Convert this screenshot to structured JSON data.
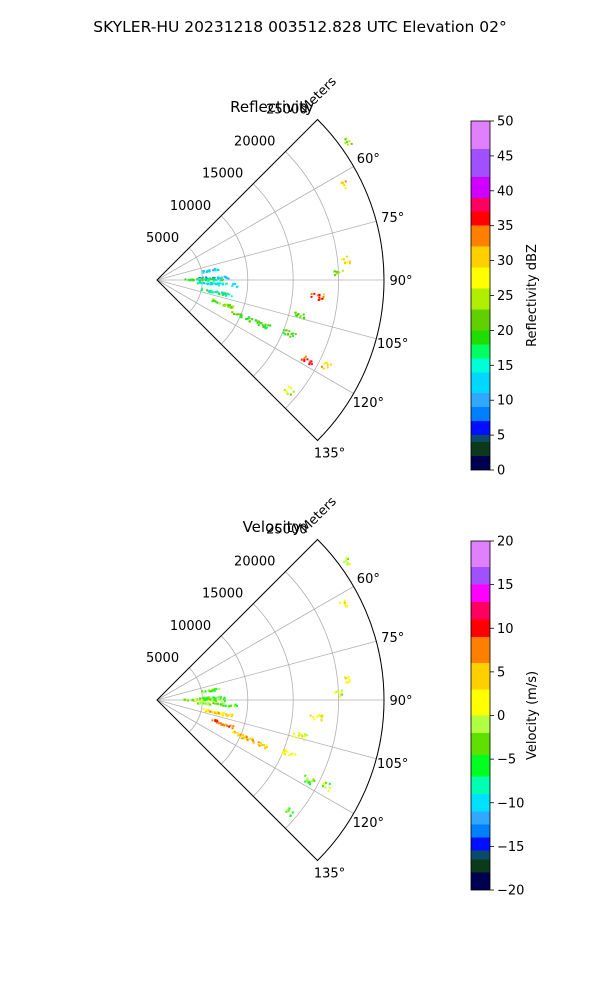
{
  "figure": {
    "title": "SKYLER-HU  20231218  003512.828 UTC Elevation 02°"
  },
  "chart_data": [
    {
      "type": "polar-sector",
      "title": "Reflectivity",
      "radial_label": "Meters",
      "r_ticks": [
        5000,
        10000,
        15000,
        20000,
        25000
      ],
      "r_max": 25000,
      "theta_ticks": [
        "60°",
        "75°",
        "90°",
        "105°",
        "120°",
        "135°"
      ],
      "theta_tick_values": [
        60,
        75,
        90,
        105,
        120,
        135
      ],
      "theta_range": [
        45,
        135
      ],
      "grid": true,
      "colorbar": {
        "label": "Reflectivity dBZ",
        "range": [
          0,
          50
        ],
        "ticks": [
          "0",
          "5",
          "10",
          "15",
          "20",
          "25",
          "30",
          "35",
          "40",
          "45",
          "50"
        ],
        "stops": [
          {
            "v": 0,
            "color": "#000050"
          },
          {
            "v": 2,
            "color": "#0a3a1a"
          },
          {
            "v": 4,
            "color": "#0b4a6a"
          },
          {
            "v": 5,
            "color": "#0010ff"
          },
          {
            "v": 7,
            "color": "#0080ff"
          },
          {
            "v": 9,
            "color": "#30a8ff"
          },
          {
            "v": 11,
            "color": "#00d8ff"
          },
          {
            "v": 14,
            "color": "#00ffd8"
          },
          {
            "v": 16,
            "color": "#00ff60"
          },
          {
            "v": 18,
            "color": "#20dd00"
          },
          {
            "v": 20,
            "color": "#60d000"
          },
          {
            "v": 23,
            "color": "#b0ee00"
          },
          {
            "v": 26,
            "color": "#ffff00"
          },
          {
            "v": 29,
            "color": "#ffd000"
          },
          {
            "v": 32,
            "color": "#ff8000"
          },
          {
            "v": 35,
            "color": "#ff0000"
          },
          {
            "v": 37,
            "color": "#ff0060"
          },
          {
            "v": 39,
            "color": "#d000ff"
          },
          {
            "v": 42,
            "color": "#a050ff"
          },
          {
            "v": 46,
            "color": "#e080ff"
          },
          {
            "v": 50,
            "color": "#ffe0ff"
          }
        ]
      },
      "echoes": [
        {
          "az": 54,
          "r": [
            25600,
            26200
          ],
          "v": 25
        },
        {
          "az": 63,
          "r": [
            22800,
            23500
          ],
          "v": 30
        },
        {
          "az": 80,
          "r": [
            5000,
            7000
          ],
          "v": 12
        },
        {
          "az": 88,
          "r": [
            4500,
            8000
          ],
          "v": 10
        },
        {
          "az": 90,
          "r": [
            3000,
            7500
          ],
          "v": 18
        },
        {
          "az": 94,
          "r": [
            4500,
            9000
          ],
          "v": 14
        },
        {
          "az": 102,
          "r": [
            5000,
            8500
          ],
          "v": 16
        },
        {
          "az": 84,
          "r": [
            20500,
            21500
          ],
          "v": 28
        },
        {
          "az": 88,
          "r": [
            19500,
            20500
          ],
          "v": 24
        },
        {
          "az": 96,
          "r": [
            17000,
            18500
          ],
          "v": 34
        },
        {
          "az": 104,
          "r": [
            15500,
            17000
          ],
          "v": 22
        },
        {
          "az": 112,
          "r": [
            15000,
            16500
          ],
          "v": 20
        },
        {
          "az": 118,
          "r": [
            18000,
            19500
          ],
          "v": 36
        },
        {
          "az": 117,
          "r": [
            20500,
            21500
          ],
          "v": 30
        },
        {
          "az": 113,
          "r": [
            9000,
            13500
          ],
          "v": 20
        },
        {
          "az": 110,
          "r": [
            6500,
            9000
          ],
          "v": 22
        },
        {
          "az": 130,
          "r": [
            18500,
            19500
          ],
          "v": 25
        }
      ]
    },
    {
      "type": "polar-sector",
      "title": "Velocity",
      "radial_label": "Meters",
      "r_ticks": [
        5000,
        10000,
        15000,
        20000,
        25000
      ],
      "r_max": 25000,
      "theta_ticks": [
        "60°",
        "75°",
        "90°",
        "105°",
        "120°",
        "135°"
      ],
      "theta_tick_values": [
        60,
        75,
        90,
        105,
        120,
        135
      ],
      "theta_range": [
        45,
        135
      ],
      "grid": true,
      "colorbar": {
        "label": "Velocity (m/s)",
        "range": [
          -20,
          20
        ],
        "ticks": [
          "−20",
          "−15",
          "−10",
          "−5",
          "0",
          "5",
          "10",
          "15",
          "20"
        ],
        "stops": [
          {
            "v": -20,
            "color": "#000050"
          },
          {
            "v": -18,
            "color": "#0a3a1a"
          },
          {
            "v": -16.5,
            "color": "#0b4a6a"
          },
          {
            "v": -15.5,
            "color": "#0010ff"
          },
          {
            "v": -14,
            "color": "#0080ff"
          },
          {
            "v": -12.5,
            "color": "#30a8ff"
          },
          {
            "v": -11,
            "color": "#00e0ff"
          },
          {
            "v": -9,
            "color": "#00ffb0"
          },
          {
            "v": -7,
            "color": "#00ff20"
          },
          {
            "v": -4.5,
            "color": "#60e000"
          },
          {
            "v": -2,
            "color": "#b0ff40"
          },
          {
            "v": 0,
            "color": "#ffff00"
          },
          {
            "v": 3,
            "color": "#ffd000"
          },
          {
            "v": 6,
            "color": "#ff8000"
          },
          {
            "v": 9,
            "color": "#ff0000"
          },
          {
            "v": 11,
            "color": "#ff0060"
          },
          {
            "v": 13,
            "color": "#ff00ff"
          },
          {
            "v": 15,
            "color": "#a050ff"
          },
          {
            "v": 17,
            "color": "#e080ff"
          },
          {
            "v": 20,
            "color": "#ffe0ff"
          }
        ]
      },
      "echoes": [
        {
          "az": 54,
          "r": [
            25600,
            26200
          ],
          "v": 0
        },
        {
          "az": 63,
          "r": [
            22800,
            23500
          ],
          "v": 1
        },
        {
          "az": 80,
          "r": [
            5000,
            7000
          ],
          "v": -3
        },
        {
          "az": 88,
          "r": [
            4500,
            8000
          ],
          "v": -4
        },
        {
          "az": 90,
          "r": [
            3000,
            7500
          ],
          "v": -2
        },
        {
          "az": 94,
          "r": [
            4500,
            9000
          ],
          "v": -3
        },
        {
          "az": 102,
          "r": [
            5000,
            8500
          ],
          "v": 4
        },
        {
          "az": 84,
          "r": [
            20500,
            21500
          ],
          "v": 1
        },
        {
          "az": 88,
          "r": [
            19500,
            20500
          ],
          "v": 0
        },
        {
          "az": 96,
          "r": [
            17000,
            18500
          ],
          "v": 2
        },
        {
          "az": 104,
          "r": [
            15500,
            17000
          ],
          "v": 1
        },
        {
          "az": 112,
          "r": [
            15000,
            16500
          ],
          "v": 2
        },
        {
          "az": 118,
          "r": [
            18000,
            19500
          ],
          "v": -3
        },
        {
          "az": 117,
          "r": [
            20500,
            21500
          ],
          "v": -2
        },
        {
          "az": 113,
          "r": [
            9000,
            13500
          ],
          "v": 5
        },
        {
          "az": 110,
          "r": [
            6500,
            9000
          ],
          "v": 8
        },
        {
          "az": 130,
          "r": [
            18500,
            19500
          ],
          "v": -3
        }
      ]
    }
  ]
}
